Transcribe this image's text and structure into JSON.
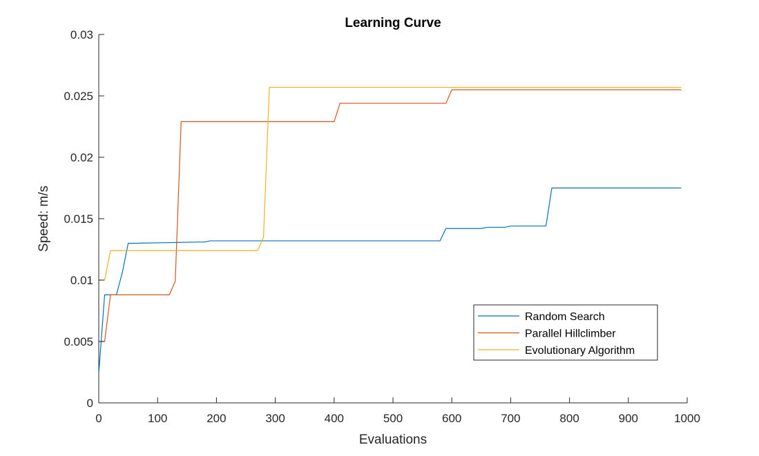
{
  "chart_data": {
    "type": "line",
    "title": "Learning Curve",
    "xlabel": "Evaluations",
    "ylabel": "Speed: m/s",
    "xlim": [
      0,
      1000
    ],
    "ylim": [
      0,
      0.03
    ],
    "xticks": [
      0,
      100,
      200,
      300,
      400,
      500,
      600,
      700,
      800,
      900,
      1000
    ],
    "xtick_labels": [
      "0",
      "100",
      "200",
      "300",
      "400",
      "500",
      "600",
      "700",
      "800",
      "900",
      "1000"
    ],
    "yticks": [
      0,
      0.005,
      0.01,
      0.015,
      0.02,
      0.025,
      0.03
    ],
    "ytick_labels": [
      "0",
      "0.005",
      "0.01",
      "0.015",
      "0.02",
      "0.025",
      "0.03"
    ],
    "grid": false,
    "legend_position": "bottom-right",
    "series": [
      {
        "name": "Random Search",
        "color": "#0072BD",
        "x": [
          0,
          10,
          20,
          30,
          40,
          50,
          60,
          170,
          180,
          190,
          580,
          590,
          650,
          660,
          690,
          700,
          760,
          770,
          990
        ],
        "y": [
          0.0024,
          0.0088,
          0.0088,
          0.0088,
          0.0106,
          0.013,
          0.013,
          0.0131,
          0.0131,
          0.0132,
          0.0132,
          0.0142,
          0.0142,
          0.0143,
          0.0143,
          0.0144,
          0.0144,
          0.0175,
          0.0175
        ]
      },
      {
        "name": "Parallel Hillclimber",
        "color": "#D95319",
        "x": [
          0,
          10,
          20,
          30,
          120,
          130,
          140,
          400,
          410,
          590,
          600,
          990
        ],
        "y": [
          0.005,
          0.005,
          0.0088,
          0.0088,
          0.0088,
          0.0099,
          0.0229,
          0.0229,
          0.0244,
          0.0244,
          0.0255,
          0.0255
        ]
      },
      {
        "name": "Evolutionary Algorithm",
        "color": "#EDB120",
        "x": [
          0,
          10,
          20,
          270,
          280,
          290,
          990
        ],
        "y": [
          0.01,
          0.01,
          0.0124,
          0.0124,
          0.0135,
          0.0257,
          0.0257
        ]
      }
    ]
  }
}
